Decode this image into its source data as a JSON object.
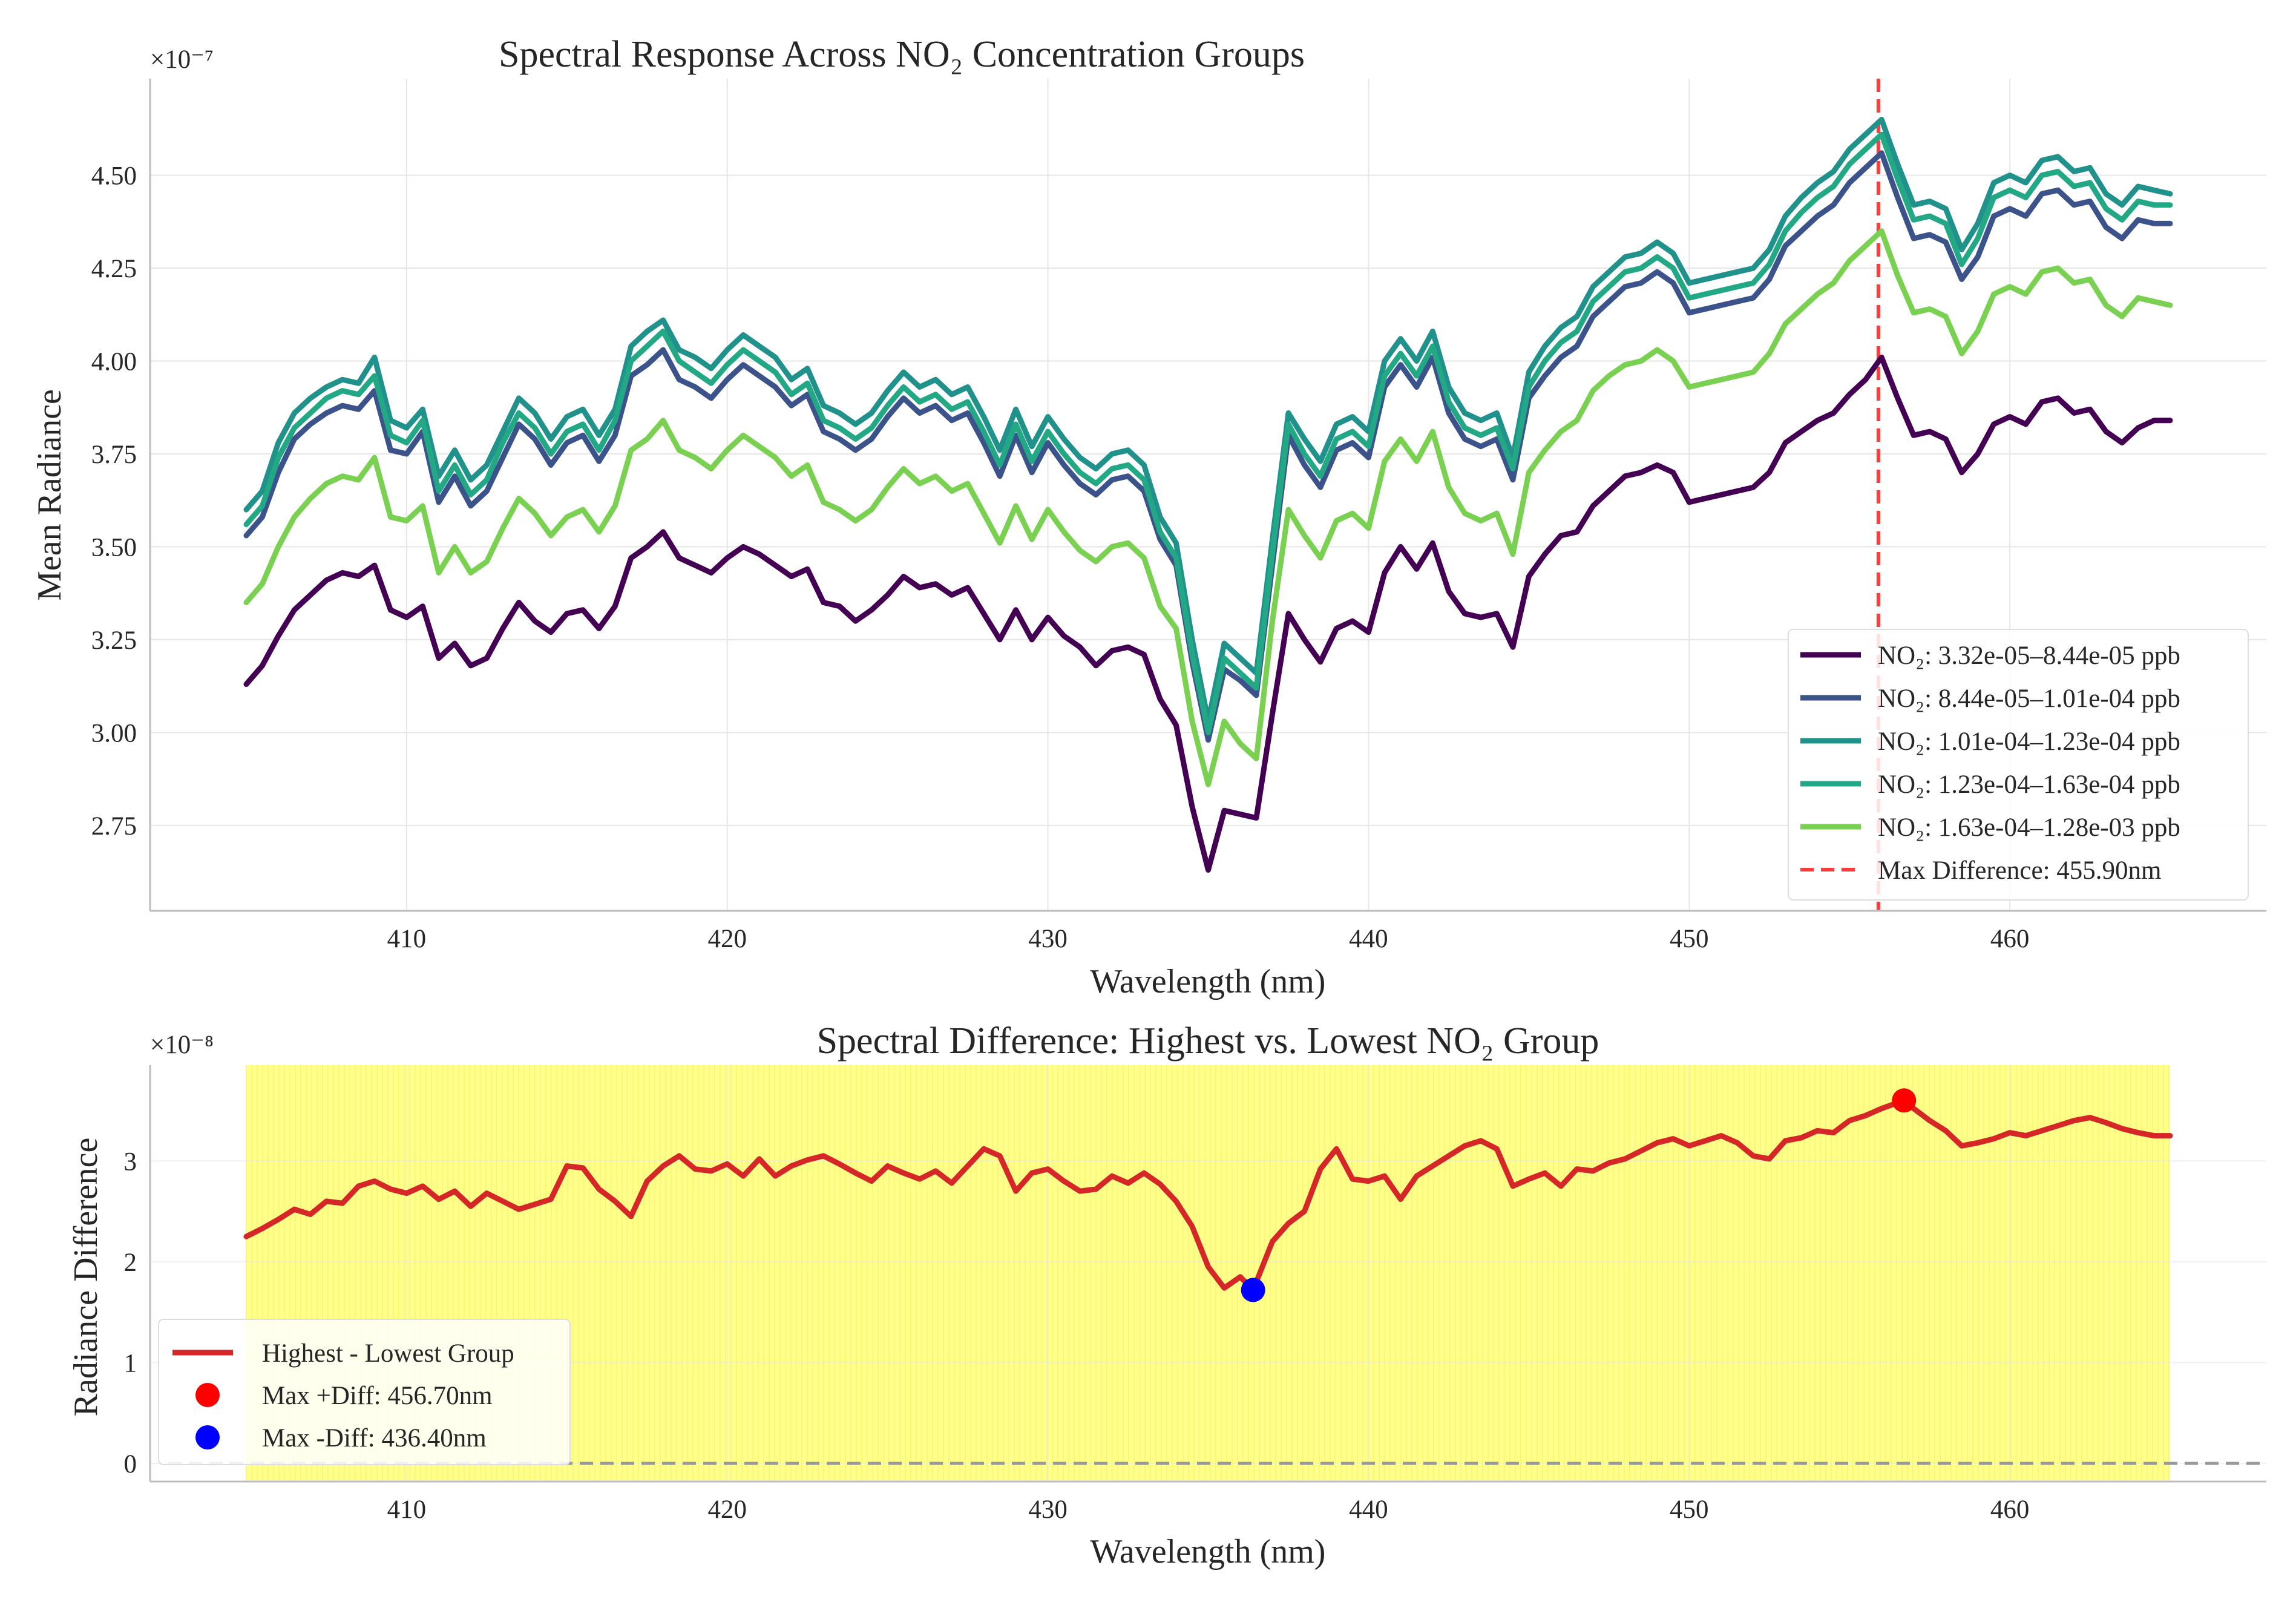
{
  "chart_data": [
    {
      "type": "line",
      "title": "Spectral Response Across NO₂ Concentration Groups",
      "xlabel": "Wavelength (nm)",
      "ylabel": "Mean Radiance",
      "y_multiplier_label": "×10⁻⁷",
      "xlim": [
        402,
        468
      ],
      "ylim": [
        2.52,
        4.76
      ],
      "xticks": [
        410,
        420,
        430,
        440,
        450,
        460
      ],
      "yticks": [
        2.75,
        3.0,
        3.25,
        3.5,
        3.75,
        4.0,
        4.25,
        4.5
      ],
      "grid": true,
      "legend_position": "lower-right",
      "x": [
        405.0,
        405.5,
        406.0,
        406.5,
        407.0,
        407.5,
        408.0,
        408.5,
        409.0,
        409.5,
        410.0,
        410.5,
        411.0,
        411.5,
        412.0,
        412.5,
        413.0,
        413.5,
        414.0,
        414.5,
        415.0,
        415.5,
        416.0,
        416.5,
        417.0,
        417.5,
        418.0,
        418.5,
        419.0,
        419.5,
        420.0,
        420.5,
        421.0,
        421.5,
        422.0,
        422.5,
        423.0,
        423.5,
        424.0,
        424.5,
        425.0,
        425.5,
        426.0,
        426.5,
        427.0,
        427.5,
        428.0,
        428.5,
        429.0,
        429.5,
        430.0,
        430.5,
        431.0,
        431.5,
        432.0,
        432.5,
        433.0,
        433.5,
        434.0,
        434.5,
        435.0,
        435.5,
        436.0,
        436.5,
        437.0,
        437.5,
        438.0,
        438.5,
        439.0,
        439.5,
        440.0,
        440.5,
        441.0,
        441.5,
        442.0,
        442.5,
        443.0,
        443.5,
        444.0,
        444.5,
        445.0,
        445.5,
        446.0,
        446.5,
        447.0,
        447.5,
        448.0,
        448.5,
        449.0,
        449.5,
        450.0,
        450.5,
        451.0,
        451.5,
        452.0,
        452.5,
        453.0,
        453.5,
        454.0,
        454.5,
        455.0,
        455.5,
        456.0,
        456.5,
        457.0,
        457.5,
        458.0,
        458.5,
        459.0,
        459.5,
        460.0,
        460.5,
        461.0,
        461.5,
        462.0,
        462.5,
        463.0,
        463.5,
        464.0,
        464.5,
        465.0
      ],
      "series": [
        {
          "name": "NO₂: 3.32e-05–8.44e-05 ppb",
          "color": "#440154",
          "values": [
            3.13,
            3.18,
            3.26,
            3.33,
            3.37,
            3.41,
            3.43,
            3.42,
            3.45,
            3.33,
            3.31,
            3.34,
            3.2,
            3.24,
            3.18,
            3.2,
            3.28,
            3.35,
            3.3,
            3.27,
            3.32,
            3.33,
            3.28,
            3.34,
            3.47,
            3.5,
            3.54,
            3.47,
            3.45,
            3.43,
            3.47,
            3.5,
            3.48,
            3.45,
            3.42,
            3.44,
            3.35,
            3.34,
            3.3,
            3.33,
            3.37,
            3.42,
            3.39,
            3.4,
            3.37,
            3.39,
            3.32,
            3.25,
            3.33,
            3.25,
            3.31,
            3.26,
            3.23,
            3.18,
            3.22,
            3.23,
            3.21,
            3.09,
            3.02,
            2.8,
            2.63,
            2.79,
            2.78,
            2.77,
            3.05,
            3.32,
            3.25,
            3.19,
            3.28,
            3.3,
            3.27,
            3.43,
            3.5,
            3.44,
            3.51,
            3.38,
            3.32,
            3.31,
            3.32,
            3.23,
            3.42,
            3.48,
            3.53,
            3.54,
            3.61,
            3.65,
            3.69,
            3.7,
            3.72,
            3.7,
            3.62,
            3.63,
            3.64,
            3.65,
            3.66,
            3.7,
            3.78,
            3.81,
            3.84,
            3.86,
            3.91,
            3.95,
            4.01,
            3.9,
            3.8,
            3.81,
            3.79,
            3.7,
            3.75,
            3.83,
            3.85,
            3.83,
            3.89,
            3.9,
            3.86,
            3.87,
            3.81,
            3.78,
            3.82,
            3.84,
            3.84
          ]
        },
        {
          "name": "NO₂: 8.44e-05–1.01e-04 ppb",
          "color": "#3b528b",
          "values": [
            3.53,
            3.58,
            3.7,
            3.79,
            3.83,
            3.86,
            3.88,
            3.87,
            3.92,
            3.76,
            3.75,
            3.81,
            3.62,
            3.69,
            3.61,
            3.65,
            3.74,
            3.83,
            3.79,
            3.72,
            3.78,
            3.8,
            3.73,
            3.8,
            3.96,
            3.99,
            4.03,
            3.95,
            3.93,
            3.9,
            3.95,
            3.99,
            3.96,
            3.93,
            3.88,
            3.91,
            3.81,
            3.79,
            3.76,
            3.79,
            3.85,
            3.9,
            3.86,
            3.88,
            3.84,
            3.86,
            3.78,
            3.69,
            3.8,
            3.7,
            3.78,
            3.72,
            3.67,
            3.64,
            3.68,
            3.69,
            3.65,
            3.52,
            3.45,
            3.19,
            2.98,
            3.17,
            3.14,
            3.1,
            3.45,
            3.8,
            3.72,
            3.66,
            3.76,
            3.78,
            3.74,
            3.93,
            3.99,
            3.93,
            4.01,
            3.86,
            3.79,
            3.77,
            3.79,
            3.68,
            3.9,
            3.96,
            4.01,
            4.04,
            4.12,
            4.16,
            4.2,
            4.21,
            4.24,
            4.21,
            4.13,
            4.14,
            4.15,
            4.16,
            4.17,
            4.22,
            4.31,
            4.35,
            4.39,
            4.42,
            4.48,
            4.52,
            4.56,
            4.44,
            4.33,
            4.34,
            4.32,
            4.22,
            4.28,
            4.39,
            4.41,
            4.39,
            4.45,
            4.46,
            4.42,
            4.43,
            4.36,
            4.33,
            4.38,
            4.37,
            4.37
          ]
        },
        {
          "name": "NO₂: 1.01e-04–1.23e-04 ppb",
          "color": "#21918c",
          "values": [
            3.6,
            3.65,
            3.78,
            3.86,
            3.9,
            3.93,
            3.95,
            3.94,
            4.01,
            3.84,
            3.82,
            3.87,
            3.69,
            3.76,
            3.68,
            3.72,
            3.81,
            3.9,
            3.86,
            3.79,
            3.85,
            3.87,
            3.8,
            3.87,
            4.04,
            4.08,
            4.11,
            4.03,
            4.01,
            3.98,
            4.03,
            4.07,
            4.04,
            4.01,
            3.95,
            3.98,
            3.88,
            3.86,
            3.83,
            3.86,
            3.92,
            3.97,
            3.93,
            3.95,
            3.91,
            3.93,
            3.85,
            3.76,
            3.87,
            3.77,
            3.85,
            3.79,
            3.74,
            3.71,
            3.75,
            3.76,
            3.72,
            3.58,
            3.51,
            3.25,
            3.03,
            3.24,
            3.2,
            3.16,
            3.52,
            3.86,
            3.79,
            3.73,
            3.83,
            3.85,
            3.81,
            4.0,
            4.06,
            4.0,
            4.08,
            3.93,
            3.86,
            3.84,
            3.86,
            3.74,
            3.97,
            4.04,
            4.09,
            4.12,
            4.2,
            4.24,
            4.28,
            4.29,
            4.32,
            4.29,
            4.21,
            4.22,
            4.23,
            4.24,
            4.25,
            4.3,
            4.39,
            4.44,
            4.48,
            4.51,
            4.57,
            4.61,
            4.65,
            4.53,
            4.42,
            4.43,
            4.41,
            4.3,
            4.37,
            4.48,
            4.5,
            4.48,
            4.54,
            4.55,
            4.51,
            4.52,
            4.45,
            4.42,
            4.47,
            4.46,
            4.45
          ]
        },
        {
          "name": "NO₂: 1.23e-04–1.63e-04 ppb",
          "color": "#22a884",
          "values": [
            3.56,
            3.61,
            3.74,
            3.82,
            3.86,
            3.9,
            3.92,
            3.91,
            3.96,
            3.8,
            3.78,
            3.84,
            3.65,
            3.72,
            3.64,
            3.68,
            3.78,
            3.86,
            3.82,
            3.75,
            3.81,
            3.83,
            3.76,
            3.84,
            4.0,
            4.04,
            4.08,
            4.0,
            3.97,
            3.94,
            3.99,
            4.03,
            4.0,
            3.97,
            3.91,
            3.94,
            3.84,
            3.82,
            3.79,
            3.82,
            3.88,
            3.93,
            3.89,
            3.91,
            3.87,
            3.89,
            3.81,
            3.72,
            3.83,
            3.73,
            3.81,
            3.75,
            3.7,
            3.67,
            3.71,
            3.72,
            3.68,
            3.54,
            3.47,
            3.21,
            3.0,
            3.2,
            3.16,
            3.12,
            3.48,
            3.83,
            3.75,
            3.69,
            3.79,
            3.81,
            3.77,
            3.96,
            4.02,
            3.96,
            4.04,
            3.89,
            3.82,
            3.8,
            3.82,
            3.71,
            3.93,
            4.0,
            4.05,
            4.08,
            4.16,
            4.2,
            4.24,
            4.25,
            4.28,
            4.25,
            4.17,
            4.18,
            4.19,
            4.2,
            4.21,
            4.26,
            4.35,
            4.4,
            4.44,
            4.47,
            4.53,
            4.57,
            4.61,
            4.49,
            4.38,
            4.39,
            4.37,
            4.26,
            4.33,
            4.44,
            4.46,
            4.44,
            4.5,
            4.51,
            4.47,
            4.48,
            4.41,
            4.38,
            4.43,
            4.42,
            4.42
          ]
        },
        {
          "name": "NO₂: 1.63e-04–1.28e-03 ppb",
          "color": "#7ad151",
          "values": [
            3.35,
            3.4,
            3.5,
            3.58,
            3.63,
            3.67,
            3.69,
            3.68,
            3.74,
            3.58,
            3.57,
            3.61,
            3.43,
            3.5,
            3.43,
            3.46,
            3.55,
            3.63,
            3.59,
            3.53,
            3.58,
            3.6,
            3.54,
            3.61,
            3.76,
            3.79,
            3.84,
            3.76,
            3.74,
            3.71,
            3.76,
            3.8,
            3.77,
            3.74,
            3.69,
            3.72,
            3.62,
            3.6,
            3.57,
            3.6,
            3.66,
            3.71,
            3.67,
            3.69,
            3.65,
            3.67,
            3.59,
            3.51,
            3.61,
            3.52,
            3.6,
            3.54,
            3.49,
            3.46,
            3.5,
            3.51,
            3.47,
            3.34,
            3.28,
            3.03,
            2.86,
            3.03,
            2.97,
            2.93,
            3.3,
            3.6,
            3.53,
            3.47,
            3.57,
            3.59,
            3.55,
            3.73,
            3.79,
            3.73,
            3.81,
            3.66,
            3.59,
            3.57,
            3.59,
            3.48,
            3.7,
            3.76,
            3.81,
            3.84,
            3.92,
            3.96,
            3.99,
            4.0,
            4.03,
            4.0,
            3.93,
            3.94,
            3.95,
            3.96,
            3.97,
            4.02,
            4.1,
            4.14,
            4.18,
            4.21,
            4.27,
            4.31,
            4.35,
            4.23,
            4.13,
            4.14,
            4.12,
            4.02,
            4.08,
            4.18,
            4.2,
            4.18,
            4.24,
            4.25,
            4.21,
            4.22,
            4.15,
            4.12,
            4.17,
            4.16,
            4.15
          ]
        }
      ],
      "annotation": {
        "x": 455.9,
        "label": "Max Difference: 455.90nm",
        "color": "#ff3b3b"
      }
    },
    {
      "type": "line",
      "title": "Spectral Difference: Highest vs. Lowest NO₂ Group",
      "xlabel": "Wavelength (nm)",
      "ylabel": "Radiance Difference",
      "y_multiplier_label": "×10⁻⁸",
      "xlim": [
        402,
        468
      ],
      "ylim": [
        -0.18,
        3.95
      ],
      "xticks": [
        410,
        420,
        430,
        440,
        450,
        460
      ],
      "yticks": [
        0,
        1,
        2,
        3
      ],
      "grid": true,
      "legend_position": "lower-left",
      "highlight_band": {
        "from": 405,
        "to": 465,
        "color": "#ffff66"
      },
      "zero_line": {
        "y": 0,
        "color": "#9a9a9a"
      },
      "series": [
        {
          "name": "Highest - Lowest Group",
          "color": "#d62728",
          "x": [
            405.0,
            405.5,
            406.0,
            406.5,
            407.0,
            407.5,
            408.0,
            408.5,
            409.0,
            409.5,
            410.0,
            410.5,
            411.0,
            411.5,
            412.0,
            412.5,
            413.0,
            413.5,
            414.0,
            414.5,
            415.0,
            415.5,
            416.0,
            416.5,
            417.0,
            417.5,
            418.0,
            418.5,
            419.0,
            419.5,
            420.0,
            420.5,
            421.0,
            421.5,
            422.0,
            422.5,
            423.0,
            423.5,
            424.0,
            424.5,
            425.0,
            425.5,
            426.0,
            426.5,
            427.0,
            427.5,
            428.0,
            428.5,
            429.0,
            429.5,
            430.0,
            430.5,
            431.0,
            431.5,
            432.0,
            432.5,
            433.0,
            433.5,
            434.0,
            434.5,
            435.0,
            435.5,
            436.0,
            436.4,
            437.0,
            437.5,
            438.0,
            438.5,
            439.0,
            439.5,
            440.0,
            440.5,
            441.0,
            441.5,
            442.0,
            442.5,
            443.0,
            443.5,
            444.0,
            444.5,
            445.0,
            445.5,
            446.0,
            446.5,
            447.0,
            447.5,
            448.0,
            448.5,
            449.0,
            449.5,
            450.0,
            450.5,
            451.0,
            451.5,
            452.0,
            452.5,
            453.0,
            453.5,
            454.0,
            454.5,
            455.0,
            455.5,
            456.0,
            456.7,
            457.0,
            457.5,
            458.0,
            458.5,
            459.0,
            459.5,
            460.0,
            460.5,
            461.0,
            461.5,
            462.0,
            462.5,
            463.0,
            463.5,
            464.0,
            464.5,
            465.0
          ],
          "values": [
            2.25,
            2.33,
            2.42,
            2.52,
            2.47,
            2.6,
            2.58,
            2.75,
            2.8,
            2.72,
            2.68,
            2.75,
            2.62,
            2.7,
            2.55,
            2.68,
            2.6,
            2.52,
            2.57,
            2.62,
            2.95,
            2.93,
            2.72,
            2.6,
            2.45,
            2.8,
            2.95,
            3.05,
            2.92,
            2.9,
            2.97,
            2.85,
            3.02,
            2.85,
            2.95,
            3.01,
            3.05,
            2.97,
            2.88,
            2.8,
            2.95,
            2.88,
            2.82,
            2.9,
            2.78,
            2.95,
            3.12,
            3.05,
            2.7,
            2.88,
            2.92,
            2.8,
            2.7,
            2.72,
            2.85,
            2.78,
            2.88,
            2.77,
            2.6,
            2.35,
            1.95,
            1.74,
            1.85,
            1.72,
            2.2,
            2.38,
            2.5,
            2.92,
            3.12,
            2.82,
            2.8,
            2.85,
            2.62,
            2.85,
            2.95,
            3.05,
            3.15,
            3.2,
            3.12,
            2.75,
            2.82,
            2.88,
            2.75,
            2.92,
            2.9,
            2.98,
            3.02,
            3.1,
            3.18,
            3.22,
            3.15,
            3.2,
            3.25,
            3.18,
            3.05,
            3.02,
            3.2,
            3.23,
            3.3,
            3.28,
            3.4,
            3.45,
            3.52,
            3.6,
            3.52,
            3.4,
            3.3,
            3.15,
            3.18,
            3.22,
            3.28,
            3.25,
            3.3,
            3.35,
            3.4,
            3.43,
            3.38,
            3.32,
            3.28,
            3.25,
            3.25
          ]
        }
      ],
      "markers": [
        {
          "name": "Max +Diff: 456.70nm",
          "x": 456.7,
          "y": 3.6,
          "color": "#ff0000"
        },
        {
          "name": "Max -Diff: 436.40nm",
          "x": 436.4,
          "y": 1.72,
          "color": "#0000ff"
        }
      ]
    }
  ]
}
